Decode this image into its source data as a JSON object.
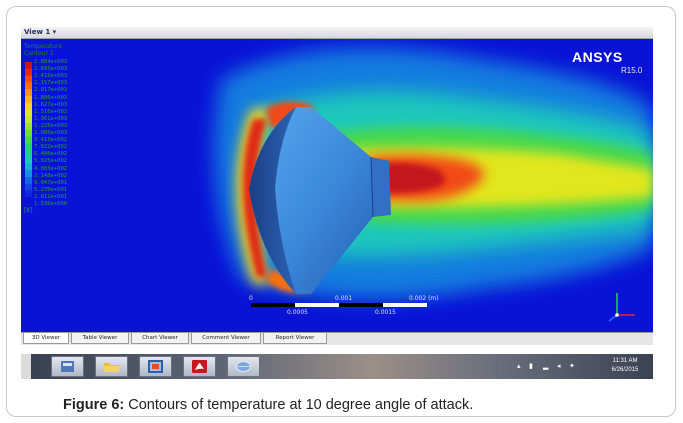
{
  "window": {
    "view_menu": "View 1  ▾"
  },
  "legend": {
    "title": "Temperature",
    "subtitle": "Contour 1",
    "values": [
      "2.804e+003",
      "2.695e+003",
      "2.416e+003",
      "2.157e+003",
      "2.017e+003",
      "1.806e+003",
      "1.627e+003",
      "1.510e+003",
      "1.361e+003",
      "1.225e+003",
      "1.080e+003",
      "9.415e+002",
      "7.822e+002",
      "6.400e+002",
      "5.025e+002",
      "4.003e+002",
      "2.148e+002",
      "9.047e+001",
      "5.270e+001",
      "2.812e+001",
      "1.536e+000"
    ],
    "unit": "[K]",
    "colors": [
      "#c4171c",
      "#df2a17",
      "#f24a13",
      "#f76f10",
      "#fb9412",
      "#fcb714",
      "#f6d31a",
      "#e2e61d",
      "#c4ea22",
      "#9be52b",
      "#6fdc38",
      "#46d84e",
      "#27d170",
      "#1cd196",
      "#1cc8bc",
      "#18b4d8",
      "#168fe1",
      "#1468e4",
      "#1345e3",
      "#1025de",
      "#0a12d6"
    ]
  },
  "branding": {
    "logo": "ANSYS",
    "version": "R15.0"
  },
  "scale_bar": {
    "top_labels": [
      "0",
      "0.001",
      "0.002 (m)"
    ],
    "bottom_labels": [
      "0.0005",
      "0.0015"
    ]
  },
  "tabs": [
    {
      "label": "3D Viewer",
      "active": true
    },
    {
      "label": "Table Viewer",
      "active": false
    },
    {
      "label": "Chart Viewer",
      "active": false
    },
    {
      "label": "Comment Viewer",
      "active": false
    },
    {
      "label": "Report Viewer",
      "active": false
    }
  ],
  "taskbar": {
    "buttons": [
      {
        "icon": "windows-explorer-icon"
      },
      {
        "icon": "folder-icon"
      },
      {
        "icon": "cfd-post-icon"
      },
      {
        "icon": "acrobat-icon"
      },
      {
        "icon": "globe-icon"
      }
    ],
    "time": "11:31 AM",
    "date": "6/26/2015"
  },
  "caption": {
    "label": "Figure 6:",
    "text": " Contours of temperature at 10 degree angle of attack."
  },
  "colors": {
    "background_field": "#0a12d6",
    "body_surface": "#3f8fe0"
  }
}
